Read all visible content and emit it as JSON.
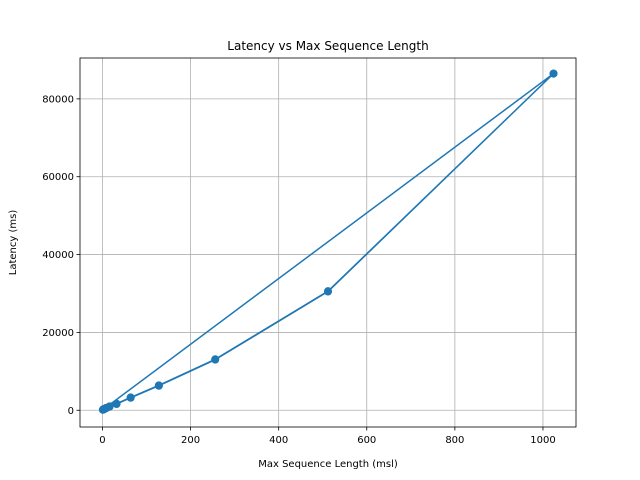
{
  "chart_data": {
    "type": "line",
    "title": "Latency vs Max Sequence Length",
    "xlabel": "Max Sequence Length (msl)",
    "ylabel": "Latency (ms)",
    "xlim": [
      -51,
      1075
    ],
    "ylim": [
      -4300,
      90500
    ],
    "grid": true,
    "x_ticks": [
      0,
      200,
      400,
      600,
      800,
      1000
    ],
    "y_ticks": [
      0,
      20000,
      40000,
      60000,
      80000
    ],
    "series": [
      {
        "color": "#1f77b4",
        "marker": "circle",
        "points": [
          [
            1,
            120
          ],
          [
            2,
            200
          ],
          [
            4,
            300
          ],
          [
            8,
            500
          ],
          [
            16,
            900
          ],
          [
            32,
            1600
          ],
          [
            64,
            3200
          ],
          [
            128,
            6300
          ],
          [
            256,
            13000
          ],
          [
            512,
            30500
          ],
          [
            1024,
            86500
          ],
          [
            1,
            150
          ],
          [
            2,
            250
          ],
          [
            4,
            350
          ],
          [
            8,
            600
          ],
          [
            16,
            1000
          ],
          [
            32,
            1700
          ],
          [
            64,
            3300
          ],
          [
            128,
            6400
          ],
          [
            256,
            13100
          ],
          [
            512,
            30600
          ],
          [
            1024,
            86500
          ]
        ]
      }
    ]
  }
}
